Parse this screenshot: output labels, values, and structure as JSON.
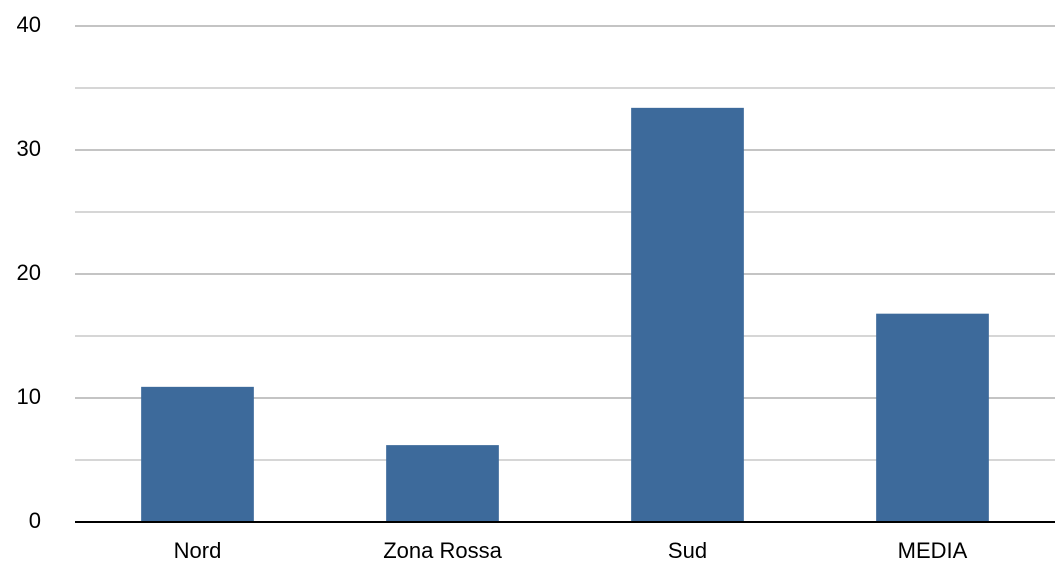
{
  "chart_data": {
    "type": "bar",
    "categories": [
      "Nord",
      "Zona Rossa",
      "Sud",
      "MEDIA"
    ],
    "values": [
      10.9,
      6.2,
      33.4,
      16.8
    ],
    "color": "#3d6a9b",
    "ylim": [
      0,
      40
    ],
    "yticks": [
      0,
      10,
      20,
      30,
      40
    ],
    "minor_yticks": [
      5,
      15,
      25,
      35
    ],
    "grid": true
  }
}
